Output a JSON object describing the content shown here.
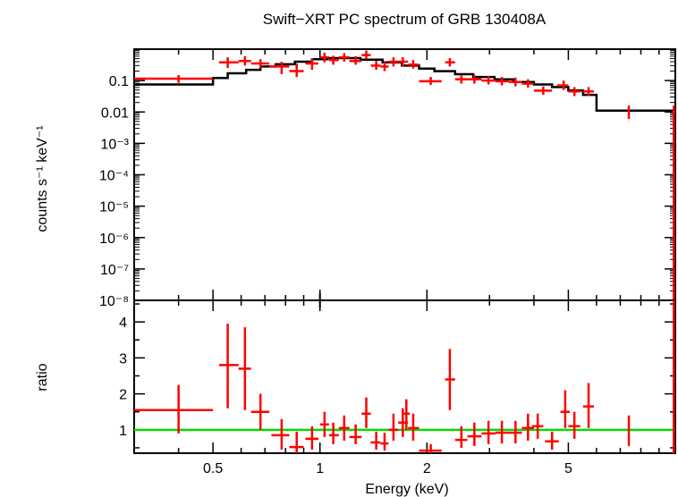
{
  "chart_data": [
    {
      "type": "scatter",
      "panel": "spectrum",
      "title": "Swift−XRT PC spectrum of GRB 130408A",
      "ylabel": "counts s⁻¹ keV⁻¹",
      "xlabel": "",
      "x_scale": "log",
      "y_scale": "log",
      "xlim": [
        0.3,
        10.0
      ],
      "ylim": [
        1e-08,
        1.0
      ],
      "y_ticks": [
        {
          "value": 0.1,
          "label": "0.1"
        },
        {
          "value": 0.01,
          "label": "0.01"
        },
        {
          "value": 0.001,
          "label": "10⁻³"
        },
        {
          "value": 0.0001,
          "label": "10⁻⁴"
        },
        {
          "value": 1e-05,
          "label": "10⁻⁵"
        },
        {
          "value": 1e-06,
          "label": "10⁻⁶"
        },
        {
          "value": 1e-07,
          "label": "10⁻⁷"
        },
        {
          "value": 1e-08,
          "label": "10⁻⁸"
        }
      ],
      "data_color": "#ff0000",
      "model_color": "#000000",
      "data": [
        {
          "x": 0.4,
          "xlo": 0.3,
          "xhi": 0.5,
          "y": 0.115,
          "ylo": 0.085,
          "yhi": 0.15
        },
        {
          "x": 0.55,
          "xlo": 0.52,
          "xhi": 0.59,
          "y": 0.38,
          "ylo": 0.25,
          "yhi": 0.55
        },
        {
          "x": 0.615,
          "xlo": 0.59,
          "xhi": 0.64,
          "y": 0.42,
          "ylo": 0.3,
          "yhi": 0.6
        },
        {
          "x": 0.68,
          "xlo": 0.64,
          "xhi": 0.72,
          "y": 0.35,
          "ylo": 0.25,
          "yhi": 0.48
        },
        {
          "x": 0.78,
          "xlo": 0.72,
          "xhi": 0.82,
          "y": 0.28,
          "ylo": 0.16,
          "yhi": 0.4
        },
        {
          "x": 0.86,
          "xlo": 0.82,
          "xhi": 0.9,
          "y": 0.2,
          "ylo": 0.13,
          "yhi": 0.35
        },
        {
          "x": 0.95,
          "xlo": 0.91,
          "xhi": 0.99,
          "y": 0.35,
          "ylo": 0.22,
          "yhi": 0.52
        },
        {
          "x": 1.03,
          "xlo": 1.0,
          "xhi": 1.06,
          "y": 0.55,
          "ylo": 0.38,
          "yhi": 0.78
        },
        {
          "x": 1.09,
          "xlo": 1.06,
          "xhi": 1.13,
          "y": 0.45,
          "ylo": 0.32,
          "yhi": 0.62
        },
        {
          "x": 1.17,
          "xlo": 1.13,
          "xhi": 1.21,
          "y": 0.55,
          "ylo": 0.4,
          "yhi": 0.75
        },
        {
          "x": 1.26,
          "xlo": 1.21,
          "xhi": 1.31,
          "y": 0.42,
          "ylo": 0.32,
          "yhi": 0.6
        },
        {
          "x": 1.35,
          "xlo": 1.31,
          "xhi": 1.39,
          "y": 0.65,
          "ylo": 0.48,
          "yhi": 0.9
        },
        {
          "x": 1.44,
          "xlo": 1.39,
          "xhi": 1.48,
          "y": 0.3,
          "ylo": 0.22,
          "yhi": 0.42
        },
        {
          "x": 1.52,
          "xlo": 1.48,
          "xhi": 1.56,
          "y": 0.28,
          "ylo": 0.2,
          "yhi": 0.4
        },
        {
          "x": 1.61,
          "xlo": 1.56,
          "xhi": 1.66,
          "y": 0.4,
          "ylo": 0.28,
          "yhi": 0.55
        },
        {
          "x": 1.71,
          "xlo": 1.66,
          "xhi": 1.77,
          "y": 0.4,
          "ylo": 0.28,
          "yhi": 0.55
        },
        {
          "x": 1.83,
          "xlo": 1.77,
          "xhi": 1.9,
          "y": 0.32,
          "ylo": 0.24,
          "yhi": 0.45
        },
        {
          "x": 2.05,
          "xlo": 1.9,
          "xhi": 2.2,
          "y": 0.095,
          "ylo": 0.072,
          "yhi": 0.13
        },
        {
          "x": 2.32,
          "xlo": 2.25,
          "xhi": 2.4,
          "y": 0.38,
          "ylo": 0.28,
          "yhi": 0.52
        },
        {
          "x": 2.5,
          "xlo": 2.4,
          "xhi": 2.6,
          "y": 0.11,
          "ylo": 0.08,
          "yhi": 0.15
        },
        {
          "x": 2.72,
          "xlo": 2.6,
          "xhi": 2.85,
          "y": 0.11,
          "ylo": 0.08,
          "yhi": 0.15
        },
        {
          "x": 2.98,
          "xlo": 2.85,
          "xhi": 3.12,
          "y": 0.1,
          "ylo": 0.075,
          "yhi": 0.14
        },
        {
          "x": 3.25,
          "xlo": 3.12,
          "xhi": 3.4,
          "y": 0.095,
          "ylo": 0.07,
          "yhi": 0.13
        },
        {
          "x": 3.55,
          "xlo": 3.4,
          "xhi": 3.7,
          "y": 0.09,
          "ylo": 0.065,
          "yhi": 0.125
        },
        {
          "x": 3.85,
          "xlo": 3.7,
          "xhi": 4.0,
          "y": 0.08,
          "ylo": 0.06,
          "yhi": 0.11
        },
        {
          "x": 4.25,
          "xlo": 4.0,
          "xhi": 4.5,
          "y": 0.048,
          "ylo": 0.035,
          "yhi": 0.065
        },
        {
          "x": 4.85,
          "xlo": 4.65,
          "xhi": 5.0,
          "y": 0.07,
          "ylo": 0.05,
          "yhi": 0.1
        },
        {
          "x": 5.2,
          "xlo": 5.0,
          "xhi": 5.4,
          "y": 0.045,
          "ylo": 0.032,
          "yhi": 0.062
        },
        {
          "x": 5.7,
          "xlo": 5.5,
          "xhi": 5.9,
          "y": 0.045,
          "ylo": 0.032,
          "yhi": 0.062
        },
        {
          "x": 7.4,
          "xlo": 7.4,
          "xhi": 7.4,
          "y": 0.0095,
          "ylo": 0.006,
          "yhi": 0.016
        },
        {
          "x": 9.9,
          "xlo": 9.8,
          "xhi": 10.0,
          "y": 0.01,
          "ylo": 1e-08,
          "yhi": 0.016
        }
      ],
      "model_steps": [
        {
          "x0": 0.3,
          "x1": 0.5,
          "y": 0.075
        },
        {
          "x0": 0.5,
          "x1": 0.55,
          "y": 0.12
        },
        {
          "x0": 0.55,
          "x1": 0.62,
          "y": 0.17
        },
        {
          "x0": 0.62,
          "x1": 0.68,
          "y": 0.22
        },
        {
          "x0": 0.68,
          "x1": 0.75,
          "y": 0.28
        },
        {
          "x0": 0.75,
          "x1": 0.85,
          "y": 0.33
        },
        {
          "x0": 0.85,
          "x1": 0.95,
          "y": 0.4
        },
        {
          "x0": 0.95,
          "x1": 1.05,
          "y": 0.48
        },
        {
          "x0": 1.05,
          "x1": 1.3,
          "y": 0.52
        },
        {
          "x0": 1.3,
          "x1": 1.5,
          "y": 0.46
        },
        {
          "x0": 1.5,
          "x1": 1.7,
          "y": 0.38
        },
        {
          "x0": 1.7,
          "x1": 1.9,
          "y": 0.3
        },
        {
          "x0": 1.9,
          "x1": 2.1,
          "y": 0.24
        },
        {
          "x0": 2.1,
          "x1": 2.4,
          "y": 0.2
        },
        {
          "x0": 2.4,
          "x1": 2.7,
          "y": 0.16
        },
        {
          "x0": 2.7,
          "x1": 3.1,
          "y": 0.13
        },
        {
          "x0": 3.1,
          "x1": 3.5,
          "y": 0.11
        },
        {
          "x0": 3.5,
          "x1": 4.0,
          "y": 0.09
        },
        {
          "x0": 4.0,
          "x1": 4.5,
          "y": 0.075
        },
        {
          "x0": 4.5,
          "x1": 5.0,
          "y": 0.062
        },
        {
          "x0": 5.0,
          "x1": 5.5,
          "y": 0.048
        },
        {
          "x0": 5.5,
          "x1": 6.0,
          "y": 0.035
        },
        {
          "x0": 6.0,
          "x1": 9.9,
          "y": 0.011
        },
        {
          "x0": 9.9,
          "x1": 10.0,
          "y": 0.003
        }
      ]
    },
    {
      "type": "scatter",
      "panel": "ratio",
      "xlabel": "Energy (keV)",
      "ylabel": "ratio",
      "x_scale": "log",
      "xlim": [
        0.3,
        10.0
      ],
      "ylim": [
        0.35,
        4.6
      ],
      "x_ticks": [
        {
          "value": 0.5,
          "label": "0.5"
        },
        {
          "value": 1,
          "label": "1"
        },
        {
          "value": 2,
          "label": "2"
        },
        {
          "value": 5,
          "label": "5"
        }
      ],
      "y_ticks": [
        {
          "value": 1,
          "label": "1"
        },
        {
          "value": 2,
          "label": "2"
        },
        {
          "value": 3,
          "label": "3"
        },
        {
          "value": 4,
          "label": "4"
        }
      ],
      "reference_line": {
        "y": 1.0,
        "color": "#00dd00"
      },
      "data_color": "#ff0000",
      "data": [
        {
          "x": 0.4,
          "xlo": 0.3,
          "xhi": 0.5,
          "y": 1.55,
          "ylo": 0.9,
          "yhi": 2.25
        },
        {
          "x": 0.55,
          "xlo": 0.52,
          "xhi": 0.59,
          "y": 2.8,
          "ylo": 1.6,
          "yhi": 3.95
        },
        {
          "x": 0.615,
          "xlo": 0.59,
          "xhi": 0.64,
          "y": 2.7,
          "ylo": 1.55,
          "yhi": 3.85
        },
        {
          "x": 0.68,
          "xlo": 0.64,
          "xhi": 0.72,
          "y": 1.5,
          "ylo": 1.0,
          "yhi": 2.0
        },
        {
          "x": 0.78,
          "xlo": 0.73,
          "xhi": 0.82,
          "y": 0.85,
          "ylo": 0.45,
          "yhi": 1.3
        },
        {
          "x": 0.86,
          "xlo": 0.82,
          "xhi": 0.9,
          "y": 0.52,
          "ylo": 0.35,
          "yhi": 0.95
        },
        {
          "x": 0.95,
          "xlo": 0.91,
          "xhi": 0.99,
          "y": 0.75,
          "ylo": 0.45,
          "yhi": 1.1
        },
        {
          "x": 1.03,
          "xlo": 1.0,
          "xhi": 1.06,
          "y": 1.15,
          "ylo": 0.8,
          "yhi": 1.5
        },
        {
          "x": 1.09,
          "xlo": 1.06,
          "xhi": 1.13,
          "y": 0.85,
          "ylo": 0.6,
          "yhi": 1.2
        },
        {
          "x": 1.17,
          "xlo": 1.13,
          "xhi": 1.21,
          "y": 1.05,
          "ylo": 0.7,
          "yhi": 1.4
        },
        {
          "x": 1.26,
          "xlo": 1.21,
          "xhi": 1.31,
          "y": 0.8,
          "ylo": 0.6,
          "yhi": 1.15
        },
        {
          "x": 1.35,
          "xlo": 1.31,
          "xhi": 1.39,
          "y": 1.45,
          "ylo": 1.05,
          "yhi": 1.9
        },
        {
          "x": 1.44,
          "xlo": 1.39,
          "xhi": 1.48,
          "y": 0.65,
          "ylo": 0.45,
          "yhi": 0.95
        },
        {
          "x": 1.52,
          "xlo": 1.48,
          "xhi": 1.56,
          "y": 0.62,
          "ylo": 0.42,
          "yhi": 0.92
        },
        {
          "x": 1.61,
          "xlo": 1.56,
          "xhi": 1.66,
          "y": 1.0,
          "ylo": 0.7,
          "yhi": 1.45
        },
        {
          "x": 1.71,
          "xlo": 1.66,
          "xhi": 1.77,
          "y": 1.2,
          "ylo": 0.8,
          "yhi": 1.6
        },
        {
          "x": 1.75,
          "xlo": 1.72,
          "xhi": 1.79,
          "y": 1.45,
          "ylo": 1.0,
          "yhi": 1.85
        },
        {
          "x": 1.83,
          "xlo": 1.77,
          "xhi": 1.9,
          "y": 1.05,
          "ylo": 0.7,
          "yhi": 1.45
        },
        {
          "x": 2.05,
          "xlo": 1.9,
          "xhi": 2.2,
          "y": 0.42,
          "ylo": 0.35,
          "yhi": 0.6
        },
        {
          "x": 2.32,
          "xlo": 2.25,
          "xhi": 2.4,
          "y": 2.4,
          "ylo": 1.55,
          "yhi": 3.25
        },
        {
          "x": 2.5,
          "xlo": 2.4,
          "xhi": 2.6,
          "y": 0.72,
          "ylo": 0.5,
          "yhi": 1.1
        },
        {
          "x": 2.72,
          "xlo": 2.6,
          "xhi": 2.85,
          "y": 0.82,
          "ylo": 0.55,
          "yhi": 1.2
        },
        {
          "x": 2.98,
          "xlo": 2.85,
          "xhi": 3.12,
          "y": 0.9,
          "ylo": 0.6,
          "yhi": 1.25
        },
        {
          "x": 3.25,
          "xlo": 3.12,
          "xhi": 3.4,
          "y": 0.92,
          "ylo": 0.62,
          "yhi": 1.25
        },
        {
          "x": 3.55,
          "xlo": 3.4,
          "xhi": 3.7,
          "y": 0.92,
          "ylo": 0.62,
          "yhi": 1.25
        },
        {
          "x": 3.85,
          "xlo": 3.7,
          "xhi": 4.0,
          "y": 1.05,
          "ylo": 0.7,
          "yhi": 1.45
        },
        {
          "x": 4.1,
          "xlo": 3.95,
          "xhi": 4.25,
          "y": 1.1,
          "ylo": 0.75,
          "yhi": 1.45
        },
        {
          "x": 4.5,
          "xlo": 4.3,
          "xhi": 4.7,
          "y": 0.68,
          "ylo": 0.45,
          "yhi": 0.95
        },
        {
          "x": 4.9,
          "xlo": 4.75,
          "xhi": 5.05,
          "y": 1.5,
          "ylo": 1.05,
          "yhi": 2.1
        },
        {
          "x": 5.2,
          "xlo": 5.0,
          "xhi": 5.4,
          "y": 1.1,
          "ylo": 0.75,
          "yhi": 1.5
        },
        {
          "x": 5.7,
          "xlo": 5.5,
          "xhi": 5.9,
          "y": 1.65,
          "ylo": 1.05,
          "yhi": 2.3
        },
        {
          "x": 7.4,
          "xlo": 7.4,
          "xhi": 7.4,
          "y": 1.0,
          "ylo": 0.55,
          "yhi": 1.4
        },
        {
          "x": 9.9,
          "xlo": 9.85,
          "xhi": 10.0,
          "y": 1.0,
          "ylo": 0.35,
          "yhi": 4.6
        }
      ]
    }
  ]
}
